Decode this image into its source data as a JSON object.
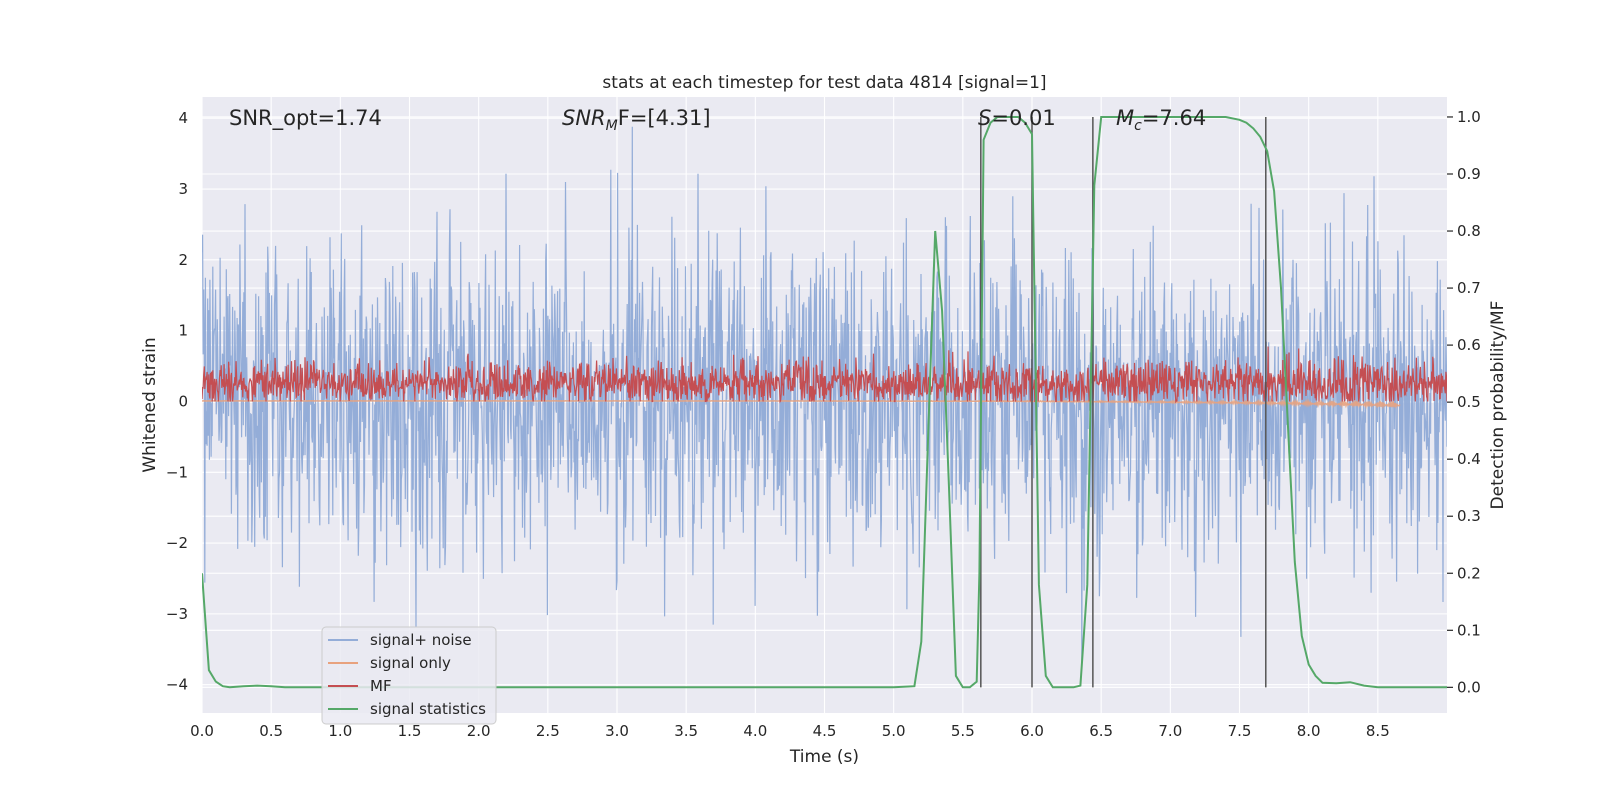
{
  "chart_data": {
    "type": "line",
    "title": "stats at each timestep for test data 4814 [signal=1]",
    "xlabel": "Time (s)",
    "ylabel": "Whitened strain",
    "y2label": "Detection probability/MF",
    "xlim": [
      0.0,
      9.0
    ],
    "ylim": [
      -4.4,
      4.3
    ],
    "y2lim": [
      -0.045,
      1.035
    ],
    "x_ticks": [
      "0.0",
      "0.5",
      "1.0",
      "1.5",
      "2.0",
      "2.5",
      "3.0",
      "3.5",
      "4.0",
      "4.5",
      "5.0",
      "5.5",
      "6.0",
      "6.5",
      "7.0",
      "7.5",
      "8.0",
      "8.5"
    ],
    "y_ticks": [
      "−4",
      "−3",
      "−2",
      "−1",
      "0",
      "1",
      "2",
      "3",
      "4"
    ],
    "y2_ticks": [
      "0.0",
      "0.1",
      "0.2",
      "0.3",
      "0.4",
      "0.5",
      "0.6",
      "0.7",
      "0.8",
      "0.9",
      "1.0"
    ],
    "grid": true,
    "legend_position": "lower-left",
    "annotations": [
      {
        "text": "SNR_opt=1.74",
        "italic": false
      },
      {
        "base": "SNR",
        "sub": "M",
        "tail": "F=[4.31]",
        "italic": true
      },
      {
        "base": "S",
        "sub": "",
        "tail": "=0.01",
        "italic": true
      },
      {
        "base": "M",
        "sub": "c",
        "tail": "=7.64",
        "italic": true
      }
    ],
    "vertical_lines_x": [
      5.63,
      6.0,
      6.44,
      7.69
    ],
    "series": [
      {
        "name": "signal+ noise",
        "color": "#8faad6",
        "axis": "left",
        "noise_std": 1.1,
        "range": [
          -3.9,
          4.0
        ]
      },
      {
        "name": "signal only",
        "color": "#e8a27e",
        "axis": "left",
        "x_end": 8.66
      },
      {
        "name": "MF",
        "color": "#c44e52",
        "axis": "left",
        "base": 0.25,
        "range": [
          0.0,
          0.98
        ]
      },
      {
        "name": "signal statistics",
        "color": "#55a868",
        "axis": "right",
        "x": [
          0.0,
          0.05,
          0.1,
          0.15,
          0.2,
          0.3,
          0.4,
          0.5,
          0.6,
          1.0,
          2.0,
          3.0,
          4.0,
          5.0,
          5.15,
          5.2,
          5.25,
          5.3,
          5.35,
          5.4,
          5.45,
          5.5,
          5.55,
          5.6,
          5.62,
          5.65,
          5.7,
          5.75,
          5.8,
          5.9,
          5.95,
          6.0,
          6.05,
          6.1,
          6.15,
          6.2,
          6.3,
          6.35,
          6.4,
          6.45,
          6.5,
          6.55,
          7.0,
          7.4,
          7.5,
          7.55,
          7.6,
          7.65,
          7.7,
          7.75,
          7.8,
          7.85,
          7.9,
          7.95,
          8.0,
          8.05,
          8.1,
          8.2,
          8.3,
          8.4,
          8.5,
          9.0
        ],
        "values": [
          0.2,
          0.03,
          0.01,
          0.002,
          0.0,
          0.002,
          0.003,
          0.002,
          0.0,
          0.0,
          0.0,
          0.0,
          0.0,
          0.0,
          0.002,
          0.08,
          0.45,
          0.8,
          0.66,
          0.35,
          0.02,
          0.0,
          0.0,
          0.01,
          0.2,
          0.96,
          0.99,
          1.0,
          1.0,
          1.0,
          0.99,
          0.97,
          0.18,
          0.02,
          0.0,
          0.0,
          0.0,
          0.003,
          0.18,
          0.88,
          1.0,
          1.0,
          1.0,
          1.0,
          0.995,
          0.99,
          0.98,
          0.965,
          0.94,
          0.87,
          0.7,
          0.46,
          0.22,
          0.09,
          0.04,
          0.02,
          0.008,
          0.007,
          0.009,
          0.003,
          0.0,
          0.0
        ]
      }
    ]
  }
}
